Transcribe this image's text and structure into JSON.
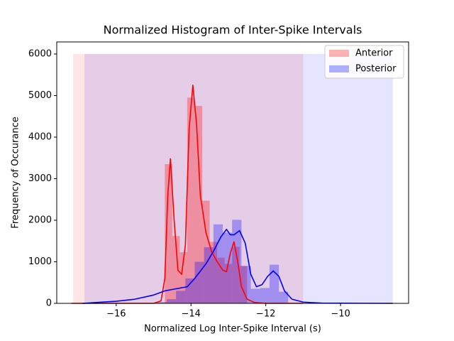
{
  "chart_data": {
    "type": "histogram",
    "title": "Normalized Histogram of Inter-Spike Intervals",
    "xlabel": "Normalized Log Inter-Spike Interval (s)",
    "ylabel": "Frequency of Occurance",
    "xlim": [
      -17.59,
      -8.18
    ],
    "ylim": [
      0,
      6290
    ],
    "xticks": [
      {
        "value": -16,
        "label": "−16"
      },
      {
        "value": -14,
        "label": "−14"
      },
      {
        "value": -12,
        "label": "−12"
      },
      {
        "value": -10,
        "label": "−10"
      }
    ],
    "yticks": [
      0,
      1000,
      2000,
      3000,
      4000,
      5000,
      6000
    ],
    "legend": "upper right",
    "series": [
      {
        "name": "Anterior",
        "color": "red",
        "bins": [
          -14.7,
          -14.5,
          -14.3,
          -14.1,
          -13.9,
          -13.7,
          -13.5,
          -13.3,
          -13.1,
          -12.9,
          -12.7,
          -12.5
        ],
        "values": [
          3350,
          1620,
          1230,
          4950,
          4750,
          2470,
          1480,
          1100,
          950,
          1360,
          900
        ],
        "kde_x": [
          -17.2,
          -15.0,
          -14.8,
          -14.7,
          -14.62,
          -14.55,
          -14.45,
          -14.35,
          -14.25,
          -14.15,
          -14.05,
          -13.95,
          -13.85,
          -13.75,
          -13.6,
          -13.45,
          -13.3,
          -13.15,
          -13.05,
          -12.95,
          -12.85,
          -12.75,
          -12.65,
          -12.5,
          -12.3,
          -12.0,
          -11.0
        ],
        "kde_values": [
          0,
          0,
          60,
          600,
          2600,
          3480,
          2000,
          800,
          700,
          1400,
          4200,
          5250,
          4300,
          2600,
          1700,
          1250,
          1000,
          800,
          760,
          1200,
          1480,
          1000,
          400,
          100,
          20,
          0,
          0
        ],
        "span": {
          "xlim": [
            -17.15,
            -11.0
          ],
          "ylim": [
            0,
            6000
          ]
        }
      },
      {
        "name": "Posterior",
        "color": "blue",
        "bins": [
          -14.9,
          -14.65,
          -14.4,
          -14.15,
          -13.9,
          -13.65,
          -13.4,
          -13.15,
          -12.9,
          -12.65,
          -12.4,
          -12.15,
          -11.9,
          -11.65,
          -11.4
        ],
        "values": [
          30,
          100,
          300,
          600,
          1000,
          1350,
          1900,
          1700,
          2010,
          900,
          350,
          370,
          930,
          280
        ],
        "kde_x": [
          -16.9,
          -16.0,
          -15.5,
          -15.0,
          -14.7,
          -14.4,
          -14.1,
          -13.9,
          -13.6,
          -13.4,
          -13.2,
          -13.05,
          -12.95,
          -12.85,
          -12.7,
          -12.55,
          -12.4,
          -12.25,
          -12.1,
          -11.95,
          -11.8,
          -11.65,
          -11.5,
          -11.3,
          -11.0,
          -10.5,
          -8.6
        ],
        "kde_values": [
          0,
          50,
          100,
          200,
          300,
          350,
          400,
          600,
          950,
          1250,
          1600,
          1780,
          1650,
          1650,
          1750,
          1450,
          700,
          400,
          450,
          650,
          780,
          650,
          300,
          100,
          30,
          5,
          0
        ],
        "span": {
          "xlim": [
            -16.85,
            -8.6
          ],
          "ylim": [
            0,
            6000
          ]
        }
      }
    ]
  }
}
